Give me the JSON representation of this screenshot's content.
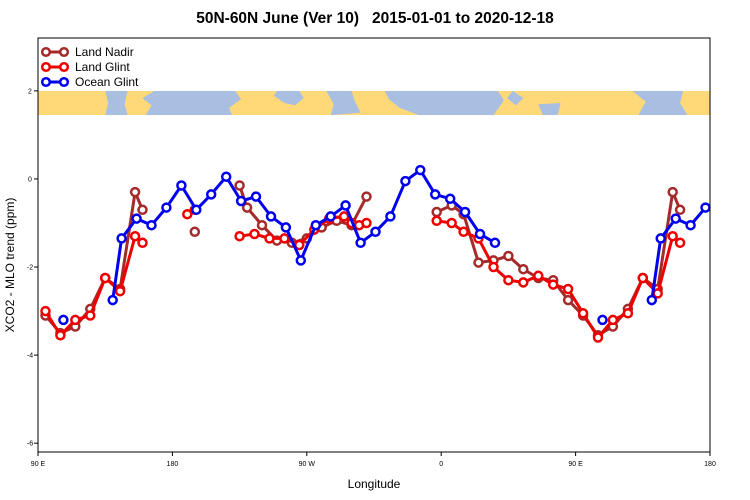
{
  "chart_data": {
    "type": "line",
    "title": "50N-60N June (Ver 10)   2015-01-01 to 2020-12-18",
    "xlabel": "Longitude",
    "ylabel": "XCO2 - MLO trend (ppm)",
    "ylim": [
      -6.2,
      3.2
    ],
    "y_ticks": [
      -6,
      -4,
      -2,
      0,
      2
    ],
    "x_ticks": [
      {
        "value": 90,
        "label": "90 E"
      },
      {
        "value": 180,
        "label": "180"
      },
      {
        "value": 270,
        "label": "90 W"
      },
      {
        "value": 360,
        "label": "0"
      },
      {
        "value": 450,
        "label": "90 E"
      },
      {
        "value": 540,
        "label": "180"
      }
    ],
    "xlim": [
      90,
      540
    ],
    "grid": false,
    "legend_position": "top-left",
    "map_strip": {
      "y_range": [
        1.45,
        2.0
      ],
      "ocean_color": "#a9bfe2",
      "land_color": "#ffd977"
    },
    "series": [
      {
        "name": "Land Nadir",
        "color": "#a52a2a",
        "points": [
          [
            95,
            -3.1
          ],
          [
            105,
            -3.5
          ],
          [
            115,
            -3.35
          ],
          [
            125,
            -2.95
          ],
          [
            135,
            -2.25
          ],
          [
            145,
            -2.5
          ],
          [
            155,
            -0.3
          ],
          [
            160,
            -0.7
          ],
          null,
          [
            195,
            -1.2
          ],
          null,
          [
            225,
            -0.15
          ],
          [
            230,
            -0.65
          ],
          [
            240,
            -1.05
          ],
          [
            250,
            -1.4
          ],
          [
            260,
            -1.45
          ],
          [
            270,
            -1.35
          ],
          [
            280,
            -1.1
          ],
          [
            290,
            -0.95
          ],
          [
            300,
            -1.05
          ],
          [
            310,
            -0.4
          ],
          null,
          [
            357,
            -0.75
          ],
          [
            367,
            -0.6
          ],
          [
            375,
            -0.8
          ],
          [
            385,
            -1.9
          ],
          [
            395,
            -1.85
          ],
          [
            405,
            -1.75
          ],
          [
            415,
            -2.05
          ],
          [
            425,
            -2.25
          ],
          [
            435,
            -2.3
          ],
          [
            445,
            -2.75
          ],
          [
            455,
            -3.1
          ],
          [
            465,
            -3.55
          ],
          [
            475,
            -3.35
          ],
          [
            485,
            -2.95
          ],
          [
            495,
            -2.25
          ],
          [
            505,
            -2.5
          ],
          [
            515,
            -0.3
          ],
          [
            520,
            -0.7
          ]
        ]
      },
      {
        "name": "Land Glint",
        "color": "#ee0000",
        "points": [
          [
            95,
            -3.0
          ],
          [
            105,
            -3.55
          ],
          [
            115,
            -3.2
          ],
          [
            125,
            -3.1
          ],
          [
            135,
            -2.25
          ],
          [
            145,
            -2.55
          ],
          [
            155,
            -1.3
          ],
          [
            160,
            -1.45
          ],
          null,
          [
            190,
            -0.8
          ],
          [
            195,
            -0.7
          ],
          null,
          [
            225,
            -1.3
          ],
          [
            235,
            -1.25
          ],
          [
            245,
            -1.35
          ],
          [
            255,
            -1.35
          ],
          [
            265,
            -1.5
          ],
          [
            275,
            -1.15
          ],
          [
            285,
            -0.9
          ],
          [
            295,
            -0.85
          ],
          [
            300,
            -1.0
          ],
          [
            305,
            -1.05
          ],
          [
            310,
            -1.0
          ],
          null,
          [
            357,
            -0.95
          ],
          [
            367,
            -1.0
          ],
          [
            375,
            -1.2
          ],
          [
            385,
            -1.35
          ],
          [
            395,
            -2.0
          ],
          [
            405,
            -2.3
          ],
          [
            415,
            -2.35
          ],
          [
            425,
            -2.2
          ],
          [
            435,
            -2.4
          ],
          [
            445,
            -2.5
          ],
          [
            455,
            -3.05
          ],
          [
            465,
            -3.6
          ],
          [
            475,
            -3.2
          ],
          [
            485,
            -3.05
          ],
          [
            495,
            -2.25
          ],
          [
            505,
            -2.6
          ],
          [
            515,
            -1.3
          ],
          [
            520,
            -1.45
          ]
        ]
      },
      {
        "name": "Ocean Glint",
        "color": "#0000ee",
        "points": [
          [
            107,
            -3.2
          ],
          null,
          [
            140,
            -2.75
          ],
          [
            146,
            -1.35
          ],
          [
            156,
            -0.9
          ],
          [
            166,
            -1.05
          ],
          [
            176,
            -0.65
          ],
          [
            186,
            -0.15
          ],
          [
            196,
            -0.7
          ],
          [
            206,
            -0.35
          ],
          [
            216,
            0.05
          ],
          [
            226,
            -0.5
          ],
          [
            236,
            -0.4
          ],
          [
            246,
            -0.85
          ],
          [
            256,
            -1.1
          ],
          [
            266,
            -1.85
          ],
          [
            276,
            -1.05
          ],
          [
            286,
            -0.85
          ],
          [
            296,
            -0.6
          ],
          [
            306,
            -1.45
          ],
          [
            316,
            -1.2
          ],
          [
            326,
            -0.85
          ],
          [
            336,
            -0.05
          ],
          [
            346,
            0.2
          ],
          [
            356,
            -0.35
          ],
          [
            366,
            -0.45
          ],
          [
            376,
            -0.75
          ],
          [
            386,
            -1.25
          ],
          [
            396,
            -1.45
          ],
          null,
          [
            468,
            -3.2
          ],
          null,
          [
            501,
            -2.75
          ],
          [
            507,
            -1.35
          ],
          [
            517,
            -0.9
          ],
          [
            527,
            -1.05
          ],
          [
            537,
            -0.65
          ]
        ]
      }
    ]
  }
}
